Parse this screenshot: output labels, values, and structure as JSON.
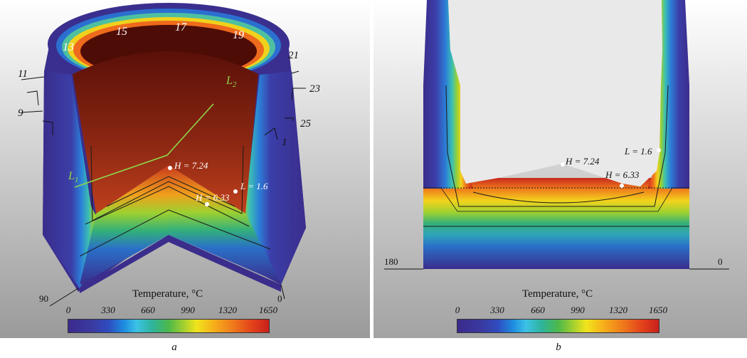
{
  "panel_a": {
    "caption": "a",
    "numbers": [
      "13",
      "15",
      "17",
      "19",
      "21",
      "11",
      "23",
      "9",
      "25",
      "1"
    ],
    "line_labels": {
      "l1_main": "L",
      "l1_sub": "1",
      "l2_main": "L",
      "l2_sub": "2"
    },
    "points": [
      "H = 7.24",
      "L = 1.6",
      "H = 6.33"
    ],
    "angles": [
      "90",
      "0"
    ],
    "colorbar": {
      "title": "Temperature, °C",
      "ticks": [
        "0",
        "330",
        "660",
        "990",
        "1320",
        "1650"
      ]
    }
  },
  "panel_b": {
    "caption": "b",
    "points": [
      "H = 7.24",
      "H = 6.33",
      "L = 1.6"
    ],
    "angles": [
      "180",
      "0"
    ],
    "colorbar": {
      "title": "Temperature, °C",
      "ticks": [
        "0",
        "330",
        "660",
        "990",
        "1320",
        "1650"
      ]
    }
  },
  "colors": {
    "cold": "#3b2a8c",
    "mid": "#4cb84a",
    "hot": "#c8201c",
    "interior": "#7a1c10"
  }
}
